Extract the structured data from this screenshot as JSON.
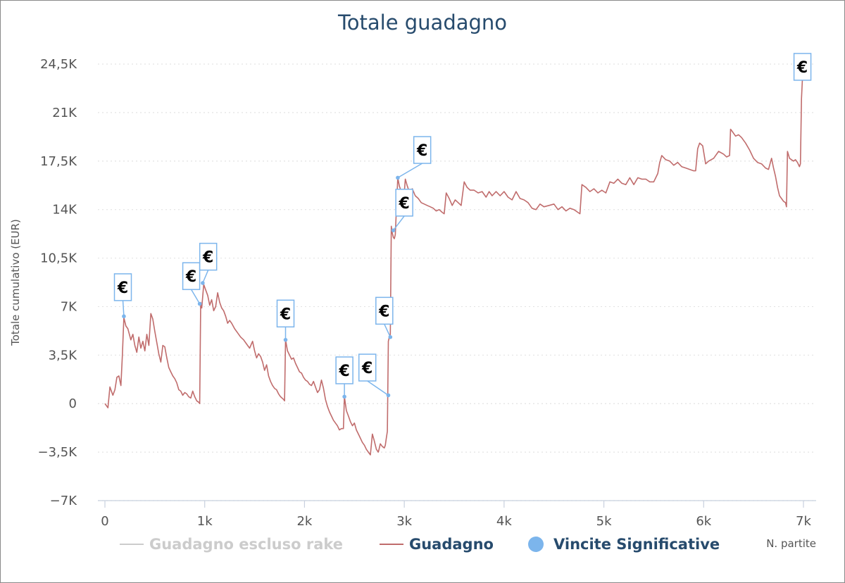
{
  "chart_data": {
    "type": "line",
    "title": "Totale guadagno",
    "xlabel": "N. partite",
    "ylabel": "Totale cumulativo (EUR)",
    "xlim": [
      0,
      7100
    ],
    "ylim": [
      -7000,
      24500
    ],
    "x_ticks": [
      0,
      1000,
      2000,
      3000,
      4000,
      5000,
      6000,
      7000
    ],
    "x_tick_labels": [
      "0",
      "1k",
      "2k",
      "3k",
      "4k",
      "5k",
      "6k",
      "7k"
    ],
    "y_ticks": [
      -7000,
      -3500,
      0,
      3500,
      7000,
      10500,
      14000,
      17500,
      21000,
      24500
    ],
    "y_tick_labels": [
      "−7K",
      "−3,5K",
      "0",
      "3,5K",
      "7K",
      "10,5K",
      "14K",
      "17,5K",
      "21K",
      "24,5K"
    ],
    "grid": true,
    "legend_position": "bottom",
    "series": [
      {
        "name": "Guadagno escluso rake",
        "color": "#cccccc",
        "hidden": true,
        "points": []
      },
      {
        "name": "Guadagno",
        "color": "#c06c6c",
        "points": [
          [
            0,
            0
          ],
          [
            30,
            -300
          ],
          [
            50,
            1200
          ],
          [
            80,
            600
          ],
          [
            100,
            1000
          ],
          [
            120,
            1900
          ],
          [
            140,
            2000
          ],
          [
            160,
            1300
          ],
          [
            175,
            3500
          ],
          [
            190,
            6200
          ],
          [
            210,
            5600
          ],
          [
            230,
            5400
          ],
          [
            260,
            4600
          ],
          [
            280,
            5000
          ],
          [
            300,
            4200
          ],
          [
            320,
            3700
          ],
          [
            340,
            4800
          ],
          [
            360,
            4000
          ],
          [
            380,
            4500
          ],
          [
            400,
            3800
          ],
          [
            420,
            5000
          ],
          [
            440,
            4200
          ],
          [
            460,
            6500
          ],
          [
            480,
            6100
          ],
          [
            500,
            5200
          ],
          [
            520,
            4400
          ],
          [
            540,
            3600
          ],
          [
            560,
            3000
          ],
          [
            580,
            4200
          ],
          [
            600,
            4100
          ],
          [
            620,
            3300
          ],
          [
            640,
            2600
          ],
          [
            660,
            2300
          ],
          [
            680,
            2000
          ],
          [
            700,
            1800
          ],
          [
            720,
            1500
          ],
          [
            740,
            1000
          ],
          [
            760,
            900
          ],
          [
            780,
            600
          ],
          [
            800,
            800
          ],
          [
            820,
            700
          ],
          [
            840,
            500
          ],
          [
            860,
            400
          ],
          [
            880,
            900
          ],
          [
            900,
            500
          ],
          [
            920,
            200
          ],
          [
            940,
            100
          ],
          [
            950,
            0
          ],
          [
            960,
            7300
          ],
          [
            970,
            6900
          ],
          [
            990,
            8600
          ],
          [
            1010,
            8200
          ],
          [
            1030,
            7800
          ],
          [
            1050,
            7100
          ],
          [
            1070,
            7500
          ],
          [
            1090,
            6700
          ],
          [
            1110,
            7000
          ],
          [
            1130,
            8000
          ],
          [
            1150,
            7300
          ],
          [
            1170,
            6900
          ],
          [
            1190,
            6700
          ],
          [
            1210,
            6300
          ],
          [
            1230,
            5800
          ],
          [
            1250,
            6000
          ],
          [
            1270,
            5800
          ],
          [
            1300,
            5400
          ],
          [
            1330,
            5100
          ],
          [
            1360,
            4800
          ],
          [
            1390,
            4600
          ],
          [
            1420,
            4300
          ],
          [
            1450,
            4000
          ],
          [
            1480,
            4500
          ],
          [
            1500,
            3800
          ],
          [
            1520,
            3300
          ],
          [
            1540,
            3600
          ],
          [
            1560,
            3400
          ],
          [
            1580,
            3000
          ],
          [
            1600,
            2400
          ],
          [
            1620,
            2800
          ],
          [
            1640,
            2000
          ],
          [
            1660,
            1600
          ],
          [
            1680,
            1300
          ],
          [
            1700,
            1100
          ],
          [
            1720,
            1000
          ],
          [
            1740,
            700
          ],
          [
            1760,
            500
          ],
          [
            1790,
            300
          ],
          [
            1800,
            200
          ],
          [
            1810,
            4600
          ],
          [
            1830,
            3800
          ],
          [
            1850,
            3500
          ],
          [
            1870,
            3200
          ],
          [
            1890,
            3300
          ],
          [
            1910,
            2900
          ],
          [
            1930,
            2600
          ],
          [
            1950,
            2300
          ],
          [
            1970,
            2200
          ],
          [
            1990,
            1900
          ],
          [
            2010,
            1700
          ],
          [
            2030,
            1600
          ],
          [
            2050,
            1400
          ],
          [
            2070,
            1300
          ],
          [
            2090,
            1600
          ],
          [
            2110,
            1200
          ],
          [
            2130,
            800
          ],
          [
            2150,
            1000
          ],
          [
            2170,
            1700
          ],
          [
            2190,
            1100
          ],
          [
            2210,
            300
          ],
          [
            2230,
            -200
          ],
          [
            2250,
            -600
          ],
          [
            2270,
            -900
          ],
          [
            2290,
            -1200
          ],
          [
            2310,
            -1400
          ],
          [
            2330,
            -1600
          ],
          [
            2350,
            -1900
          ],
          [
            2370,
            -1800
          ],
          [
            2390,
            -1800
          ],
          [
            2400,
            500
          ],
          [
            2420,
            -500
          ],
          [
            2440,
            -900
          ],
          [
            2460,
            -1300
          ],
          [
            2480,
            -1600
          ],
          [
            2500,
            -1400
          ],
          [
            2520,
            -1900
          ],
          [
            2540,
            -2200
          ],
          [
            2560,
            -2500
          ],
          [
            2580,
            -2800
          ],
          [
            2600,
            -3000
          ],
          [
            2620,
            -3300
          ],
          [
            2640,
            -3500
          ],
          [
            2660,
            -3700
          ],
          [
            2680,
            -2200
          ],
          [
            2700,
            -2700
          ],
          [
            2720,
            -3300
          ],
          [
            2740,
            -3500
          ],
          [
            2760,
            -2900
          ],
          [
            2780,
            -3100
          ],
          [
            2800,
            -3200
          ],
          [
            2810,
            -3000
          ],
          [
            2820,
            -2500
          ],
          [
            2830,
            -2000
          ],
          [
            2840,
            4500
          ],
          [
            2850,
            4800
          ],
          [
            2860,
            5000
          ],
          [
            2870,
            12800
          ],
          [
            2880,
            12300
          ],
          [
            2890,
            12000
          ],
          [
            2900,
            11900
          ],
          [
            2910,
            12200
          ],
          [
            2920,
            13900
          ],
          [
            2935,
            16300
          ],
          [
            2950,
            15700
          ],
          [
            2965,
            15400
          ],
          [
            2980,
            15000
          ],
          [
            3000,
            15200
          ],
          [
            3010,
            16200
          ],
          [
            3030,
            15700
          ],
          [
            3050,
            15300
          ],
          [
            3080,
            15500
          ],
          [
            3110,
            15000
          ],
          [
            3140,
            14800
          ],
          [
            3170,
            14500
          ],
          [
            3200,
            14400
          ],
          [
            3230,
            14300
          ],
          [
            3260,
            14200
          ],
          [
            3290,
            14100
          ],
          [
            3320,
            13900
          ],
          [
            3350,
            14000
          ],
          [
            3380,
            13800
          ],
          [
            3400,
            13700
          ],
          [
            3420,
            15200
          ],
          [
            3450,
            14800
          ],
          [
            3480,
            14300
          ],
          [
            3510,
            14700
          ],
          [
            3540,
            14500
          ],
          [
            3570,
            14300
          ],
          [
            3600,
            16000
          ],
          [
            3630,
            15600
          ],
          [
            3660,
            15400
          ],
          [
            3700,
            15400
          ],
          [
            3740,
            15200
          ],
          [
            3780,
            15300
          ],
          [
            3820,
            14900
          ],
          [
            3850,
            15300
          ],
          [
            3880,
            15000
          ],
          [
            3920,
            15300
          ],
          [
            3960,
            15000
          ],
          [
            4000,
            15300
          ],
          [
            4040,
            14900
          ],
          [
            4080,
            14700
          ],
          [
            4120,
            15300
          ],
          [
            4160,
            14800
          ],
          [
            4200,
            14700
          ],
          [
            4240,
            14500
          ],
          [
            4280,
            14100
          ],
          [
            4320,
            14000
          ],
          [
            4360,
            14400
          ],
          [
            4400,
            14200
          ],
          [
            4450,
            14300
          ],
          [
            4500,
            14400
          ],
          [
            4540,
            14000
          ],
          [
            4580,
            14200
          ],
          [
            4620,
            13900
          ],
          [
            4660,
            14100
          ],
          [
            4700,
            14000
          ],
          [
            4740,
            13800
          ],
          [
            4760,
            13700
          ],
          [
            4780,
            15800
          ],
          [
            4820,
            15600
          ],
          [
            4860,
            15300
          ],
          [
            4900,
            15500
          ],
          [
            4940,
            15200
          ],
          [
            4980,
            15400
          ],
          [
            5020,
            15200
          ],
          [
            5060,
            16000
          ],
          [
            5100,
            15900
          ],
          [
            5140,
            16200
          ],
          [
            5180,
            15900
          ],
          [
            5220,
            15800
          ],
          [
            5260,
            16300
          ],
          [
            5300,
            15800
          ],
          [
            5340,
            16300
          ],
          [
            5380,
            16200
          ],
          [
            5420,
            16200
          ],
          [
            5460,
            16000
          ],
          [
            5500,
            16000
          ],
          [
            5540,
            16600
          ],
          [
            5560,
            17400
          ],
          [
            5580,
            17900
          ],
          [
            5620,
            17600
          ],
          [
            5660,
            17500
          ],
          [
            5700,
            17200
          ],
          [
            5740,
            17400
          ],
          [
            5780,
            17100
          ],
          [
            5820,
            17000
          ],
          [
            5860,
            16900
          ],
          [
            5900,
            16800
          ],
          [
            5920,
            16800
          ],
          [
            5940,
            18400
          ],
          [
            5960,
            18800
          ],
          [
            5990,
            18600
          ],
          [
            6020,
            17300
          ],
          [
            6050,
            17500
          ],
          [
            6100,
            17700
          ],
          [
            6150,
            18200
          ],
          [
            6200,
            18000
          ],
          [
            6230,
            17800
          ],
          [
            6260,
            17900
          ],
          [
            6270,
            19800
          ],
          [
            6290,
            19600
          ],
          [
            6320,
            19300
          ],
          [
            6350,
            19400
          ],
          [
            6380,
            19200
          ],
          [
            6420,
            18800
          ],
          [
            6460,
            18300
          ],
          [
            6500,
            17700
          ],
          [
            6540,
            17400
          ],
          [
            6580,
            17300
          ],
          [
            6620,
            17000
          ],
          [
            6650,
            16900
          ],
          [
            6680,
            17700
          ],
          [
            6700,
            17000
          ],
          [
            6720,
            16400
          ],
          [
            6740,
            15600
          ],
          [
            6760,
            15000
          ],
          [
            6780,
            14800
          ],
          [
            6800,
            14600
          ],
          [
            6820,
            14500
          ],
          [
            6830,
            14200
          ],
          [
            6840,
            18200
          ],
          [
            6860,
            17700
          ],
          [
            6880,
            17600
          ],
          [
            6900,
            17500
          ],
          [
            6920,
            17600
          ],
          [
            6940,
            17400
          ],
          [
            6960,
            17100
          ],
          [
            6970,
            17300
          ],
          [
            6980,
            22000
          ],
          [
            6990,
            23500
          ],
          [
            7000,
            24300
          ]
        ]
      },
      {
        "name": "Vincite Significative",
        "color": "#7cb5ec",
        "type": "flags",
        "flag_label": "€",
        "points": [
          {
            "x": 190,
            "y": 6300,
            "flag_x": 180,
            "flag_y": 8400
          },
          {
            "x": 950,
            "y": 7200,
            "flag_x": 865,
            "flag_y": 9200
          },
          {
            "x": 980,
            "y": 8700,
            "flag_x": 1035,
            "flag_y": 10600
          },
          {
            "x": 1810,
            "y": 4600,
            "flag_x": 1810,
            "flag_y": 6500
          },
          {
            "x": 2400,
            "y": 500,
            "flag_x": 2400,
            "flag_y": 2400
          },
          {
            "x": 2840,
            "y": 600,
            "flag_x": 2630,
            "flag_y": 2600
          },
          {
            "x": 2860,
            "y": 4800,
            "flag_x": 2800,
            "flag_y": 6700
          },
          {
            "x": 2890,
            "y": 12500,
            "flag_x": 3000,
            "flag_y": 14500
          },
          {
            "x": 2935,
            "y": 16300,
            "flag_x": 3180,
            "flag_y": 18300
          },
          {
            "x": 6990,
            "y": 23500,
            "flag_x": 6990,
            "flag_y": 24300
          }
        ]
      }
    ]
  },
  "legend": {
    "items": [
      {
        "label": "Guadagno escluso rake",
        "color": "#cccccc",
        "text_color": "#cccccc",
        "marker": "line"
      },
      {
        "label": "Guadagno",
        "color": "#c06c6c",
        "text_color": "#274b6d",
        "marker": "line"
      },
      {
        "label": "Vincite Significative",
        "color": "#7cb5ec",
        "text_color": "#274b6d",
        "marker": "dot"
      }
    ]
  }
}
